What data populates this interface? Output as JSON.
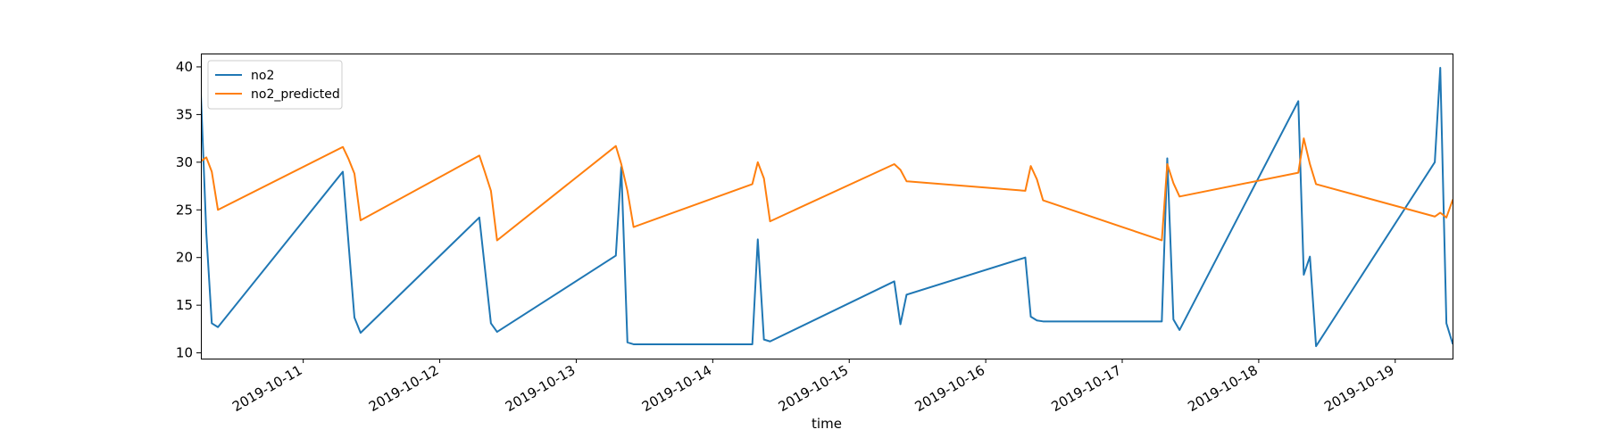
{
  "chart_data": {
    "type": "line",
    "title": "",
    "xlabel": "time",
    "ylabel": "",
    "x_unit": "days since 2019-10-10 00:00",
    "xlim": [
      10.25,
      19.42
    ],
    "ylim": [
      9.4,
      41.4
    ],
    "yticks": [
      10,
      15,
      20,
      25,
      30,
      35,
      40
    ],
    "xticks": [
      {
        "label": "2019-10-11",
        "value": 11
      },
      {
        "label": "2019-10-12",
        "value": 12
      },
      {
        "label": "2019-10-13",
        "value": 13
      },
      {
        "label": "2019-10-14",
        "value": 14
      },
      {
        "label": "2019-10-15",
        "value": 15
      },
      {
        "label": "2019-10-16",
        "value": 16
      },
      {
        "label": "2019-10-17",
        "value": 17
      },
      {
        "label": "2019-10-18",
        "value": 18
      },
      {
        "label": "2019-10-19",
        "value": 19
      }
    ],
    "legend": {
      "location": "top-left"
    },
    "series": [
      {
        "name": "no2",
        "color": "#1f77b4",
        "points": [
          [
            10.25,
            37.2
          ],
          [
            10.29,
            22.5
          ],
          [
            10.33,
            13.1
          ],
          [
            10.375,
            12.7
          ],
          [
            11.29,
            29.0
          ],
          [
            11.375,
            13.7
          ],
          [
            11.42,
            12.1
          ],
          [
            12.29,
            24.2
          ],
          [
            12.375,
            13.1
          ],
          [
            12.42,
            12.2
          ],
          [
            13.29,
            20.2
          ],
          [
            13.33,
            29.5
          ],
          [
            13.375,
            11.1
          ],
          [
            13.42,
            10.9
          ],
          [
            14.29,
            10.9
          ],
          [
            14.33,
            21.9
          ],
          [
            14.375,
            11.4
          ],
          [
            14.42,
            11.2
          ],
          [
            15.33,
            17.5
          ],
          [
            15.375,
            13.0
          ],
          [
            15.42,
            16.1
          ],
          [
            16.29,
            20.0
          ],
          [
            16.33,
            13.8
          ],
          [
            16.375,
            13.4
          ],
          [
            16.42,
            13.3
          ],
          [
            17.29,
            13.3
          ],
          [
            17.33,
            30.4
          ],
          [
            17.375,
            13.5
          ],
          [
            17.42,
            12.4
          ],
          [
            18.29,
            36.4
          ],
          [
            18.33,
            18.2
          ],
          [
            18.375,
            20.1
          ],
          [
            18.42,
            10.7
          ],
          [
            19.29,
            30.0
          ],
          [
            19.33,
            39.9
          ],
          [
            19.375,
            13.1
          ],
          [
            19.42,
            11.0
          ]
        ]
      },
      {
        "name": "no2_predicted",
        "color": "#ff7f0e",
        "points": [
          [
            10.25,
            30.1
          ],
          [
            10.29,
            30.5
          ],
          [
            10.33,
            29.0
          ],
          [
            10.375,
            25.0
          ],
          [
            11.29,
            31.6
          ],
          [
            11.33,
            30.4
          ],
          [
            11.375,
            28.8
          ],
          [
            11.42,
            23.9
          ],
          [
            12.29,
            30.7
          ],
          [
            12.33,
            29.0
          ],
          [
            12.375,
            27.0
          ],
          [
            12.42,
            21.8
          ],
          [
            13.29,
            31.7
          ],
          [
            13.33,
            29.8
          ],
          [
            13.375,
            27.0
          ],
          [
            13.42,
            23.2
          ],
          [
            14.29,
            27.7
          ],
          [
            14.33,
            30.0
          ],
          [
            14.375,
            28.3
          ],
          [
            14.42,
            23.8
          ],
          [
            15.33,
            29.8
          ],
          [
            15.375,
            29.2
          ],
          [
            15.42,
            28.0
          ],
          [
            16.29,
            27.0
          ],
          [
            16.33,
            29.6
          ],
          [
            16.375,
            28.2
          ],
          [
            16.42,
            26.0
          ],
          [
            17.29,
            21.8
          ],
          [
            17.33,
            29.8
          ],
          [
            17.375,
            27.8
          ],
          [
            17.42,
            26.4
          ],
          [
            18.29,
            28.9
          ],
          [
            18.33,
            32.5
          ],
          [
            18.375,
            29.8
          ],
          [
            18.42,
            27.7
          ],
          [
            19.29,
            24.3
          ],
          [
            19.33,
            24.7
          ],
          [
            19.375,
            24.2
          ],
          [
            19.42,
            26.0
          ]
        ]
      }
    ]
  }
}
